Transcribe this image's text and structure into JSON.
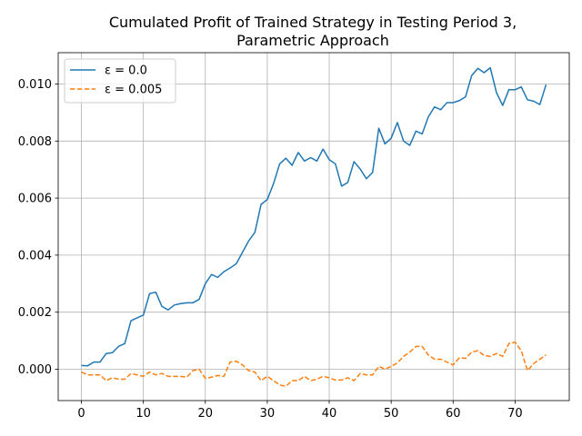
{
  "chart_data": {
    "type": "line",
    "title_lines": [
      "Cumulated Profit of Trained Strategy in Testing Period 3,",
      "Parametric Approach"
    ],
    "xlabel": "",
    "ylabel": "",
    "xlim": [
      -3.75,
      78.75
    ],
    "ylim": [
      -0.0011,
      0.0111
    ],
    "x_ticks": [
      0,
      10,
      20,
      30,
      40,
      50,
      60,
      70
    ],
    "x_tick_labels": [
      "0",
      "10",
      "20",
      "30",
      "40",
      "50",
      "60",
      "70"
    ],
    "y_ticks": [
      0.0,
      0.002,
      0.004,
      0.006,
      0.008,
      0.01
    ],
    "y_tick_labels": [
      "0.000",
      "0.002",
      "0.004",
      "0.006",
      "0.008",
      "0.010"
    ],
    "grid": true,
    "legend_position": "upper-left",
    "x": [
      0,
      1,
      2,
      3,
      4,
      5,
      6,
      7,
      8,
      9,
      10,
      11,
      12,
      13,
      14,
      15,
      16,
      17,
      18,
      19,
      20,
      21,
      22,
      23,
      24,
      25,
      26,
      27,
      28,
      29,
      30,
      31,
      32,
      33,
      34,
      35,
      36,
      37,
      38,
      39,
      40,
      41,
      42,
      43,
      44,
      45,
      46,
      47,
      48,
      49,
      50,
      51,
      52,
      53,
      54,
      55,
      56,
      57,
      58,
      59,
      60,
      61,
      62,
      63,
      64,
      65,
      66,
      67,
      68,
      69,
      70,
      71,
      72,
      73,
      74,
      75
    ],
    "series": [
      {
        "name": "ε =  0.0",
        "color": "#1f77b4",
        "style": "solid",
        "values": [
          0.00013,
          0.00012,
          0.00025,
          0.00025,
          0.00055,
          0.00058,
          0.0008,
          0.0009,
          0.0017,
          0.0018,
          0.0019,
          0.00265,
          0.0027,
          0.0022,
          0.00208,
          0.00225,
          0.0023,
          0.00233,
          0.00233,
          0.00245,
          0.003,
          0.00332,
          0.00322,
          0.00342,
          0.00355,
          0.0037,
          0.0041,
          0.0045,
          0.0048,
          0.00578,
          0.00595,
          0.0065,
          0.0072,
          0.0074,
          0.00715,
          0.0076,
          0.0073,
          0.00742,
          0.0073,
          0.00772,
          0.00735,
          0.0072,
          0.00642,
          0.00655,
          0.00728,
          0.00702,
          0.00668,
          0.0069,
          0.00845,
          0.0079,
          0.0081,
          0.00865,
          0.008,
          0.00785,
          0.00835,
          0.00825,
          0.00885,
          0.0092,
          0.0091,
          0.00935,
          0.00935,
          0.00942,
          0.00955,
          0.0103,
          0.01055,
          0.0104,
          0.01057,
          0.0097,
          0.00925,
          0.0098,
          0.0098,
          0.0099,
          0.00945,
          0.0094,
          0.00928,
          0.00998
        ]
      },
      {
        "name": "ε =  0.005",
        "color": "#ff7f0e",
        "style": "dashed",
        "values": [
          -0.0001,
          -0.0002,
          -0.0002,
          -0.0002,
          -0.0004,
          -0.0003,
          -0.00035,
          -0.00035,
          -0.00015,
          -0.0002,
          -0.00025,
          -0.0001,
          -0.0002,
          -0.00015,
          -0.00025,
          -0.00025,
          -0.00025,
          -0.00028,
          -5e-05,
          0.0,
          -0.00032,
          -0.00028,
          -0.00022,
          -0.00025,
          0.00025,
          0.00028,
          0.00015,
          -5e-05,
          -0.0001,
          -0.0004,
          -0.00025,
          -0.0004,
          -0.00055,
          -0.0006,
          -0.0004,
          -0.0004,
          -0.00025,
          -0.0004,
          -0.00035,
          -0.00025,
          -0.0003,
          -0.00038,
          -0.00038,
          -0.0003,
          -0.0004,
          -0.00015,
          -0.0002,
          -0.0002,
          0.0001,
          0.0,
          0.0001,
          0.00022,
          0.00045,
          0.0006,
          0.0008,
          0.0008,
          0.0005,
          0.00035,
          0.00035,
          0.00025,
          0.00015,
          0.0004,
          0.00038,
          0.0006,
          0.00065,
          0.00048,
          0.00045,
          0.00055,
          0.00045,
          0.0009,
          0.00095,
          0.00065,
          -5e-05,
          0.0002,
          0.00035,
          0.0005
        ]
      }
    ]
  }
}
